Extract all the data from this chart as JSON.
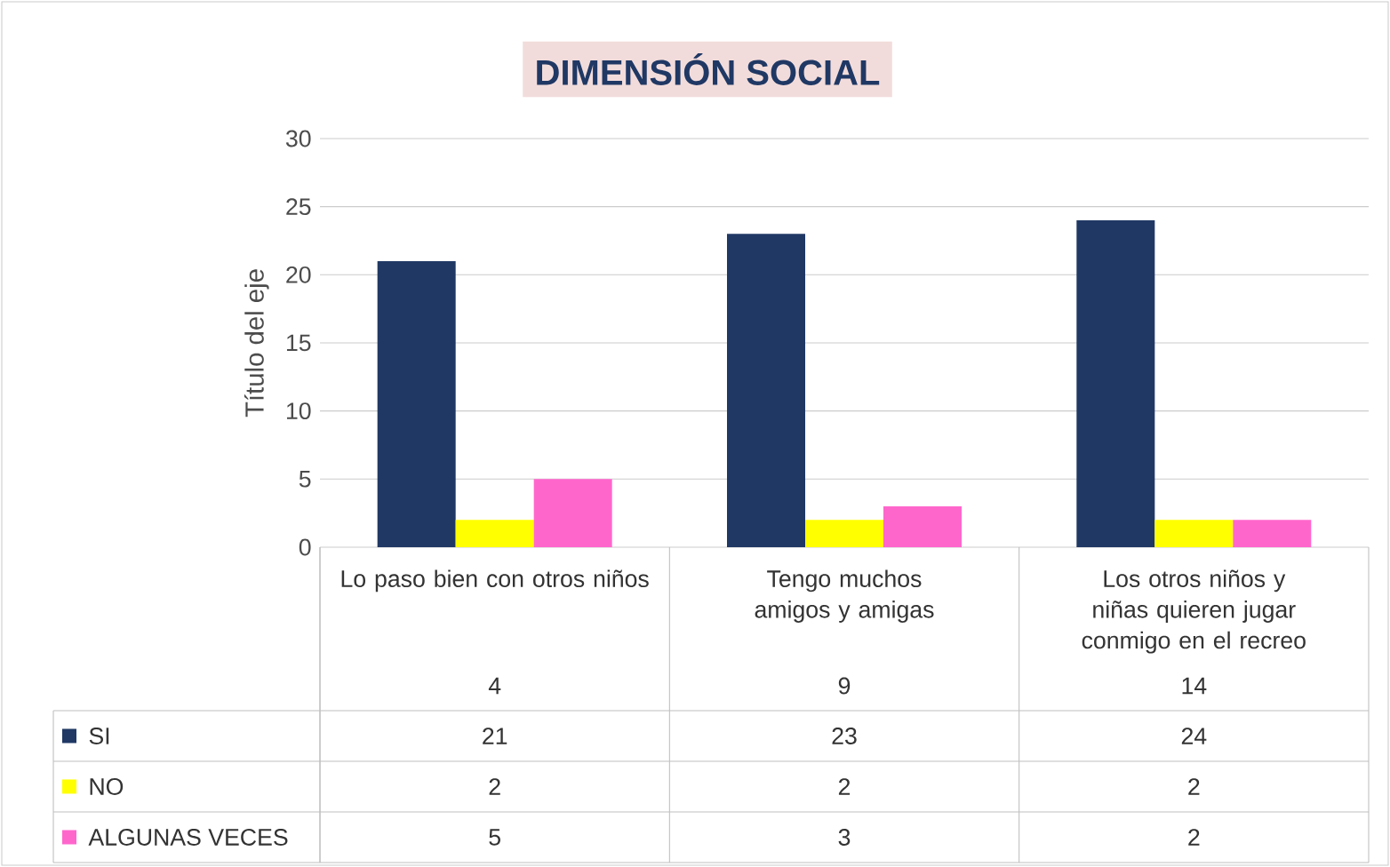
{
  "chart_data": {
    "type": "bar",
    "title": "DIMENSIÓN SOCIAL",
    "ylabel": "Título del eje",
    "categories": [
      "Lo paso bien con otros niños",
      "Tengo muchos amigos y amigas",
      "Los otros niños y niñas quieren jugar conmigo en el recreo"
    ],
    "annotations": [
      "4",
      "9",
      "14"
    ],
    "series": [
      {
        "name": "SI",
        "color": "#203864",
        "values": [
          21,
          23,
          24
        ]
      },
      {
        "name": "NO",
        "color": "#ffff00",
        "values": [
          2,
          2,
          2
        ]
      },
      {
        "name": "ALGUNAS VECES",
        "color": "#ff66cc",
        "values": [
          5,
          3,
          2
        ]
      }
    ],
    "ylim": [
      0,
      30
    ],
    "yticks": [
      0,
      5,
      10,
      15,
      20,
      25,
      30
    ],
    "grid": "y",
    "legend": "bottom",
    "data_labels": true
  }
}
